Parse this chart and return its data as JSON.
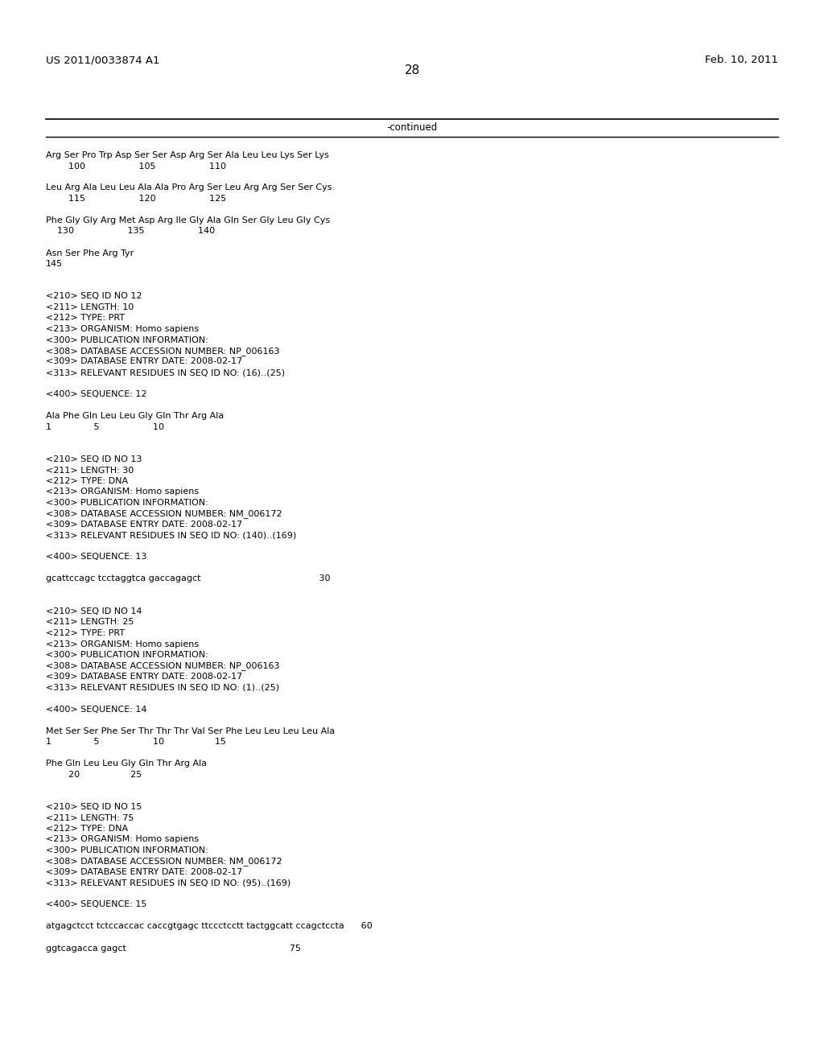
{
  "header_left": "US 2011/0033874 A1",
  "header_right": "Feb. 10, 2011",
  "page_number": "28",
  "continued_label": "-continued",
  "background_color": "#ffffff",
  "text_color": "#000000",
  "font_size_header": 9.5,
  "font_size_page": 11.0,
  "font_size_body": 8.0,
  "font_size_continued": 8.5,
  "content_lines": [
    "Arg Ser Pro Trp Asp Ser Ser Asp Arg Ser Ala Leu Leu Lys Ser Lys",
    "        100                   105                   110",
    "",
    "Leu Arg Ala Leu Leu Ala Ala Pro Arg Ser Leu Arg Arg Ser Ser Cys",
    "        115                   120                   125",
    "",
    "Phe Gly Gly Arg Met Asp Arg Ile Gly Ala Gln Ser Gly Leu Gly Cys",
    "    130                   135                   140",
    "",
    "Asn Ser Phe Arg Tyr",
    "145",
    "",
    "",
    "<210> SEQ ID NO 12",
    "<211> LENGTH: 10",
    "<212> TYPE: PRT",
    "<213> ORGANISM: Homo sapiens",
    "<300> PUBLICATION INFORMATION:",
    "<308> DATABASE ACCESSION NUMBER: NP_006163",
    "<309> DATABASE ENTRY DATE: 2008-02-17",
    "<313> RELEVANT RESIDUES IN SEQ ID NO: (16)..(25)",
    "",
    "<400> SEQUENCE: 12",
    "",
    "Ala Phe Gln Leu Leu Gly Gln Thr Arg Ala",
    "1               5                   10",
    "",
    "",
    "<210> SEQ ID NO 13",
    "<211> LENGTH: 30",
    "<212> TYPE: DNA",
    "<213> ORGANISM: Homo sapiens",
    "<300> PUBLICATION INFORMATION:",
    "<308> DATABASE ACCESSION NUMBER: NM_006172",
    "<309> DATABASE ENTRY DATE: 2008-02-17",
    "<313> RELEVANT RESIDUES IN SEQ ID NO: (140)..(169)",
    "",
    "<400> SEQUENCE: 13",
    "",
    "gcattccagc tcctaggtca gaccagagct                                          30",
    "",
    "",
    "<210> SEQ ID NO 14",
    "<211> LENGTH: 25",
    "<212> TYPE: PRT",
    "<213> ORGANISM: Homo sapiens",
    "<300> PUBLICATION INFORMATION:",
    "<308> DATABASE ACCESSION NUMBER: NP_006163",
    "<309> DATABASE ENTRY DATE: 2008-02-17",
    "<313> RELEVANT RESIDUES IN SEQ ID NO: (1)..(25)",
    "",
    "<400> SEQUENCE: 14",
    "",
    "Met Ser Ser Phe Ser Thr Thr Thr Val Ser Phe Leu Leu Leu Leu Ala",
    "1               5                   10                  15",
    "",
    "Phe Gln Leu Leu Gly Gln Thr Arg Ala",
    "        20                  25",
    "",
    "",
    "<210> SEQ ID NO 15",
    "<211> LENGTH: 75",
    "<212> TYPE: DNA",
    "<213> ORGANISM: Homo sapiens",
    "<300> PUBLICATION INFORMATION:",
    "<308> DATABASE ACCESSION NUMBER: NM_006172",
    "<309> DATABASE ENTRY DATE: 2008-02-17",
    "<313> RELEVANT RESIDUES IN SEQ ID NO: (95)..(169)",
    "",
    "<400> SEQUENCE: 15",
    "",
    "atgagctcct tctccaccac caccgtgagc ttccctcctt tactggcatt ccagctccta      60",
    "",
    "ggtcagacca gagct                                                          75"
  ]
}
